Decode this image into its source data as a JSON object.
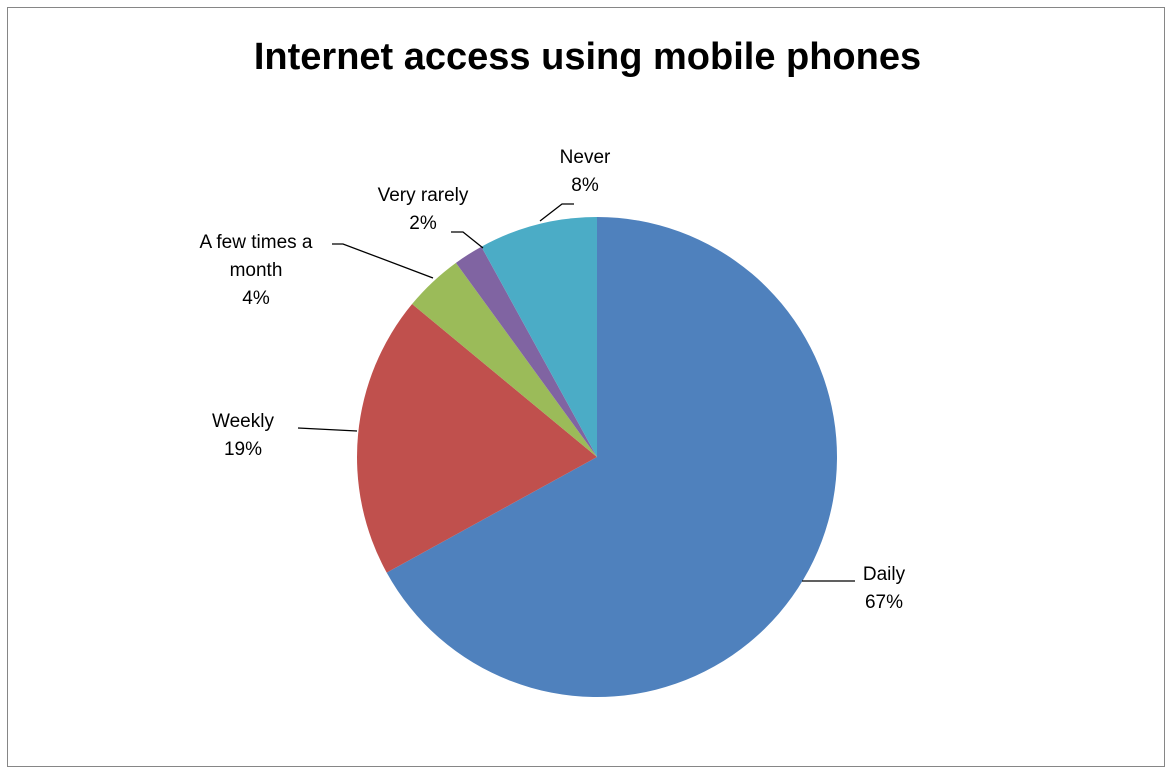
{
  "chart_data": {
    "type": "pie",
    "title": "Internet access using mobile phones",
    "slices": [
      {
        "label": "Daily",
        "value": 67,
        "percent_label": "67%",
        "color": "#4F81BD"
      },
      {
        "label": "Weekly",
        "value": 19,
        "percent_label": "19%",
        "color": "#C0504D"
      },
      {
        "label": "A few times a month",
        "value": 4,
        "percent_label": "4%",
        "color": "#9BBB59"
      },
      {
        "label": "Very rarely",
        "value": 2,
        "percent_label": "2%",
        "color": "#8064A2"
      },
      {
        "label": "Never",
        "value": 8,
        "percent_label": "8%",
        "color": "#4BACC6"
      }
    ],
    "start_angle": "12 o'clock",
    "direction": "clockwise",
    "legend": "none"
  }
}
